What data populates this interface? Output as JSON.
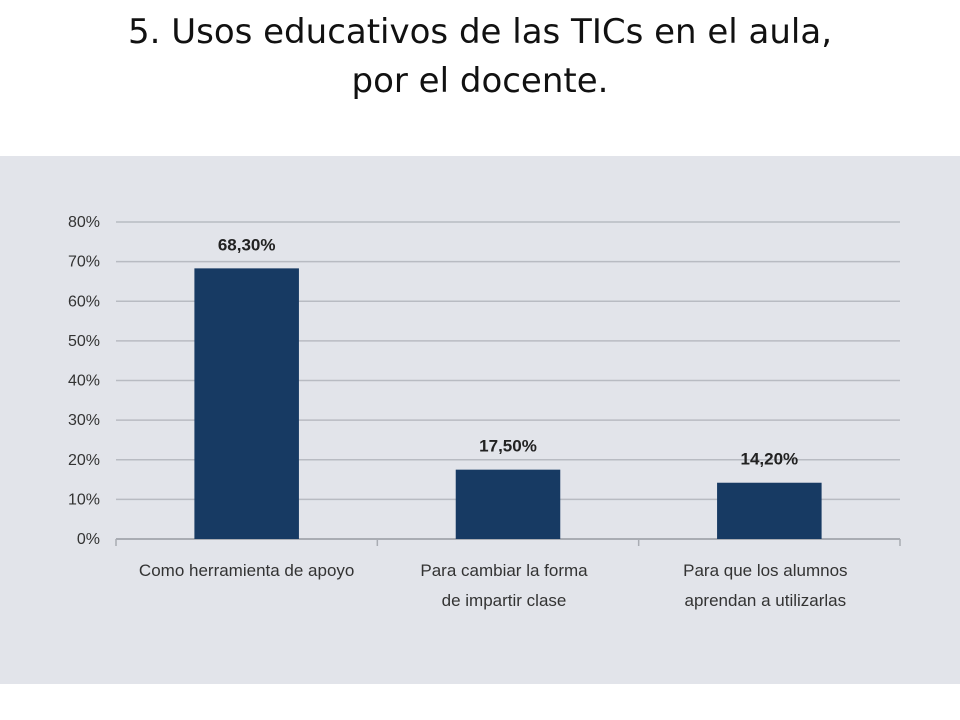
{
  "slide": {
    "title_line1": "5. Usos educativos de las TICs en el aula,",
    "title_line2": "por el docente."
  },
  "chart_data": {
    "type": "bar",
    "categories": [
      [
        "Como herramienta de apoyo"
      ],
      [
        "Para cambiar la forma",
        "de impartir clase"
      ],
      [
        "Para que los alumnos",
        "aprendan a utilizarlas"
      ]
    ],
    "values": [
      68.3,
      17.5,
      14.2
    ],
    "data_labels": [
      "68,30%",
      "17,50%",
      "14,20%"
    ],
    "yticks": [
      0,
      10,
      20,
      30,
      40,
      50,
      60,
      70,
      80
    ],
    "ytick_labels": [
      "0%",
      "10%",
      "20%",
      "30%",
      "40%",
      "50%",
      "60%",
      "70%",
      "80%"
    ],
    "ylim": [
      0,
      80
    ],
    "grid": true,
    "legend": "none",
    "bar_color": "#173a63",
    "panel_color": "#e2e4ea",
    "grid_color": "#b8bbc2"
  }
}
